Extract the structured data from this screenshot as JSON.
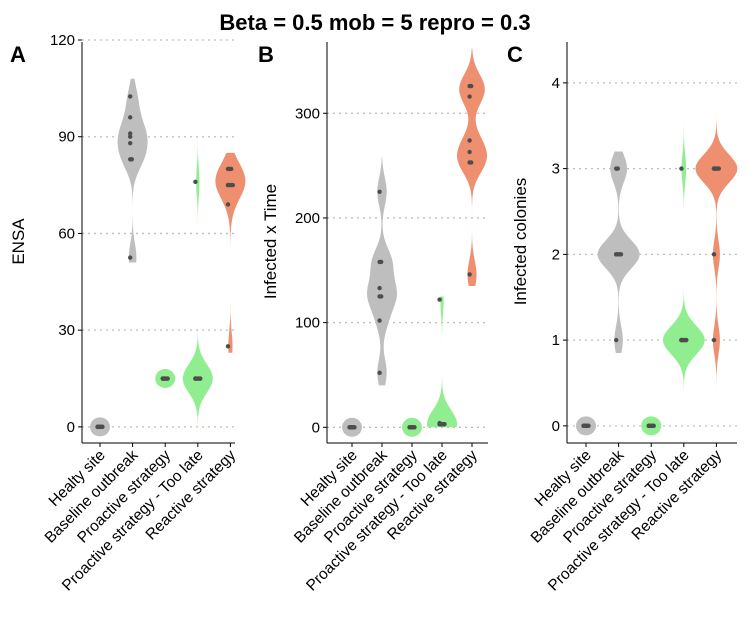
{
  "title": "Beta = 0.5   mob = 5   repro = 0.3",
  "colors": {
    "Healty site": "#bebebe",
    "Baseline outbreak": "#bebebe",
    "Proactive strategy": "#90ee90",
    "Proactive strategy - Too late": "#90ee90",
    "Reactive strategy": "#ee8f6f"
  },
  "chart_data": [
    {
      "panel": "A",
      "type": "violin",
      "ylabel": "ENSA",
      "xlabel": "",
      "ylim": [
        -5,
        120
      ],
      "yticks": [
        0,
        30,
        60,
        90,
        120
      ],
      "grid": "horizontal dotted",
      "categories": [
        "Healty site",
        "Baseline outbreak",
        "Proactive strategy",
        "Proactive strategy - Too late",
        "Reactive strategy"
      ],
      "groups": [
        {
          "category": "Healty site",
          "points": [
            0,
            0,
            0,
            0,
            0,
            0,
            0,
            0,
            0,
            0
          ],
          "range": [
            0,
            0
          ]
        },
        {
          "category": "Baseline outbreak",
          "points": [
            52.5,
            83,
            83,
            88,
            90,
            91,
            96,
            102.5
          ],
          "range": [
            51,
            108
          ]
        },
        {
          "category": "Proactive strategy",
          "points": [
            15,
            15,
            15,
            15,
            15,
            15,
            15,
            15,
            15,
            15
          ],
          "range": [
            15,
            15
          ]
        },
        {
          "category": "Proactive strategy - Too late",
          "points": [
            15,
            15,
            15,
            15,
            15,
            15,
            15,
            15,
            15,
            76
          ],
          "range": [
            0,
            94
          ]
        },
        {
          "category": "Reactive strategy",
          "points": [
            25,
            69,
            75,
            75,
            75,
            75,
            75,
            80,
            80,
            80
          ],
          "range": [
            23,
            85
          ]
        }
      ]
    },
    {
      "panel": "B",
      "type": "violin",
      "ylabel": "Infected x Time",
      "xlabel": "",
      "ylim": [
        -15,
        370
      ],
      "yticks": [
        0,
        100,
        200,
        300
      ],
      "grid": "horizontal dotted",
      "categories": [
        "Healty site",
        "Baseline outbreak",
        "Proactive strategy",
        "Proactive strategy - Too late",
        "Reactive strategy"
      ],
      "groups": [
        {
          "category": "Healty site",
          "points": [
            0,
            0,
            0,
            0,
            0,
            0,
            0,
            0,
            0,
            0
          ],
          "range": [
            0,
            0
          ]
        },
        {
          "category": "Baseline outbreak",
          "points": [
            52,
            102,
            125,
            125,
            133,
            158,
            158,
            225
          ],
          "range": [
            40,
            258
          ]
        },
        {
          "category": "Proactive strategy",
          "points": [
            0,
            0,
            0,
            0,
            0,
            0,
            0,
            0,
            0,
            0
          ],
          "range": [
            0,
            0
          ]
        },
        {
          "category": "Proactive strategy - Too late",
          "points": [
            3,
            3,
            3,
            3,
            3,
            3,
            3,
            3,
            4,
            122
          ],
          "range": [
            0,
            125
          ]
        },
        {
          "category": "Reactive strategy",
          "points": [
            146,
            253,
            253,
            263,
            274,
            316,
            326,
            326
          ],
          "range": [
            135,
            362
          ]
        }
      ]
    },
    {
      "panel": "C",
      "type": "violin",
      "ylabel": "Infected colonies",
      "xlabel": "",
      "ylim": [
        -0.2,
        4.5
      ],
      "yticks": [
        0,
        1,
        2,
        3,
        4
      ],
      "grid": "horizontal dotted",
      "categories": [
        "Healty site",
        "Baseline outbreak",
        "Proactive strategy",
        "Proactive strategy - Too late",
        "Reactive strategy"
      ],
      "groups": [
        {
          "category": "Healty site",
          "points": [
            0,
            0,
            0,
            0,
            0,
            0,
            0,
            0,
            0,
            0
          ],
          "range": [
            0,
            0
          ]
        },
        {
          "category": "Baseline outbreak",
          "points": [
            1,
            2,
            2,
            2,
            2,
            2,
            3,
            3
          ],
          "range": [
            0.85,
            3.2
          ]
        },
        {
          "category": "Proactive strategy",
          "points": [
            0,
            0,
            0,
            0,
            0,
            0,
            0,
            0,
            0,
            0
          ],
          "range": [
            0,
            0
          ]
        },
        {
          "category": "Proactive strategy - Too late",
          "points": [
            1,
            1,
            1,
            1,
            1,
            1,
            1,
            1,
            1,
            3
          ],
          "range": [
            0,
            3.6
          ]
        },
        {
          "category": "Reactive strategy",
          "points": [
            1,
            2,
            3,
            3,
            3,
            3,
            3,
            3
          ],
          "range": [
            0.3,
            4.1
          ]
        }
      ]
    }
  ]
}
